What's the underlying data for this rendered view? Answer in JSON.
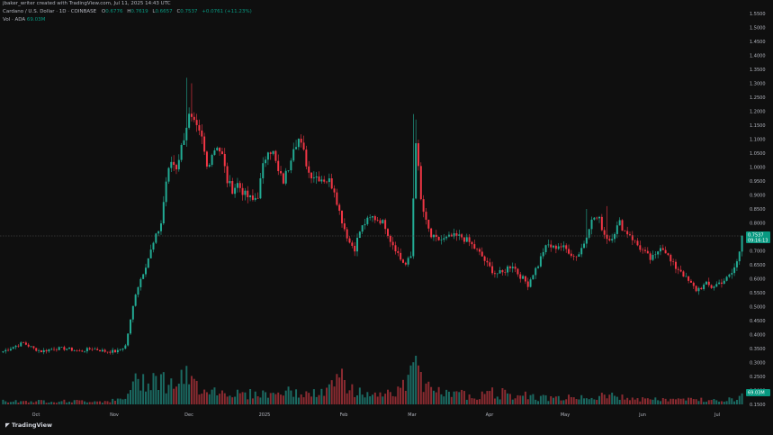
{
  "watermark": "jbaker_writer created with TradingView.com, Jul 11, 2025 14:43 UTC",
  "symbol_line": "Cardano / U.S. Dollar · 1D · COINBASE",
  "ohlc": {
    "o_label": "O",
    "o": "0.6776",
    "h_label": "H",
    "h": "0.7619",
    "l_label": "L",
    "l": "0.6657",
    "c_label": "C",
    "c": "0.7537",
    "change": "+0.0761 (+11.23%)"
  },
  "volume_line": {
    "label": "Vol · ADA",
    "value": "69.03M"
  },
  "price_tag": {
    "price": "0.7537",
    "countdown": "09:16:13"
  },
  "volume_tag": "69.03M",
  "logo_text": "TradingView",
  "colors": {
    "up": "#22ab94",
    "down": "#f23645",
    "up_vol": "#1b6a62",
    "down_vol": "#8b2b31",
    "background": "#0f0f0f"
  },
  "chart_data": {
    "type": "candlestick",
    "title": "Cardano / U.S. Dollar · 1D · COINBASE",
    "y_ticks": [
      "1.5500",
      "1.5000",
      "1.4500",
      "1.4000",
      "1.3500",
      "1.3000",
      "1.2500",
      "1.2000",
      "1.1500",
      "1.1000",
      "1.0500",
      "1.0000",
      "0.9500",
      "0.9000",
      "0.8500",
      "0.8000",
      "0.7500",
      "0.7000",
      "0.6500",
      "0.6000",
      "0.5500",
      "0.5000",
      "0.4500",
      "0.4000",
      "0.3500",
      "0.3000",
      "0.2500",
      "0.2000",
      "0.1500"
    ],
    "x_ticks": [
      "Oct",
      "Nov",
      "Dec",
      "2025",
      "Feb",
      "Mar",
      "Apr",
      "May",
      "Jun",
      "Jul"
    ],
    "close_path": [
      [
        0,
        0.34
      ],
      [
        5,
        0.36
      ],
      [
        8,
        0.37
      ],
      [
        12,
        0.35
      ],
      [
        15,
        0.34
      ],
      [
        20,
        0.35
      ],
      [
        25,
        0.35
      ],
      [
        30,
        0.34
      ],
      [
        35,
        0.35
      ],
      [
        40,
        0.34
      ],
      [
        45,
        0.34
      ],
      [
        48,
        0.36
      ],
      [
        50,
        0.45
      ],
      [
        52,
        0.55
      ],
      [
        54,
        0.6
      ],
      [
        56,
        0.65
      ],
      [
        58,
        0.7
      ],
      [
        60,
        0.75
      ],
      [
        62,
        0.8
      ],
      [
        64,
        0.95
      ],
      [
        66,
        1.02
      ],
      [
        68,
        1.0
      ],
      [
        70,
        1.07
      ],
      [
        72,
        1.15
      ],
      [
        73,
        1.18
      ],
      [
        75,
        1.15
      ],
      [
        78,
        1.1
      ],
      [
        80,
        1.0
      ],
      [
        82,
        1.05
      ],
      [
        84,
        1.08
      ],
      [
        86,
        1.04
      ],
      [
        88,
        0.95
      ],
      [
        90,
        0.92
      ],
      [
        92,
        0.94
      ],
      [
        95,
        0.9
      ],
      [
        98,
        0.88
      ],
      [
        100,
        0.9
      ],
      [
        102,
        1.0
      ],
      [
        104,
        1.07
      ],
      [
        106,
        1.05
      ],
      [
        108,
        0.98
      ],
      [
        110,
        0.95
      ],
      [
        112,
        1.0
      ],
      [
        114,
        1.08
      ],
      [
        116,
        1.1
      ],
      [
        118,
        1.05
      ],
      [
        120,
        0.98
      ],
      [
        122,
        0.97
      ],
      [
        125,
        0.96
      ],
      [
        128,
        0.95
      ],
      [
        130,
        0.92
      ],
      [
        132,
        0.84
      ],
      [
        134,
        0.78
      ],
      [
        136,
        0.73
      ],
      [
        138,
        0.71
      ],
      [
        140,
        0.77
      ],
      [
        142,
        0.8
      ],
      [
        145,
        0.82
      ],
      [
        148,
        0.81
      ],
      [
        150,
        0.79
      ],
      [
        152,
        0.74
      ],
      [
        154,
        0.71
      ],
      [
        156,
        0.67
      ],
      [
        158,
        0.65
      ],
      [
        160,
        0.68
      ],
      [
        162,
        1.1
      ],
      [
        164,
        0.88
      ],
      [
        166,
        0.8
      ],
      [
        168,
        0.75
      ],
      [
        170,
        0.74
      ],
      [
        173,
        0.74
      ],
      [
        176,
        0.75
      ],
      [
        180,
        0.75
      ],
      [
        183,
        0.73
      ],
      [
        186,
        0.7
      ],
      [
        188,
        0.68
      ],
      [
        190,
        0.65
      ],
      [
        193,
        0.62
      ],
      [
        196,
        0.62
      ],
      [
        198,
        0.64
      ],
      [
        200,
        0.65
      ],
      [
        202,
        0.62
      ],
      [
        204,
        0.6
      ],
      [
        206,
        0.58
      ],
      [
        208,
        0.62
      ],
      [
        210,
        0.65
      ],
      [
        212,
        0.7
      ],
      [
        214,
        0.72
      ],
      [
        216,
        0.71
      ],
      [
        218,
        0.72
      ],
      [
        220,
        0.71
      ],
      [
        222,
        0.7
      ],
      [
        224,
        0.68
      ],
      [
        226,
        0.69
      ],
      [
        228,
        0.73
      ],
      [
        230,
        0.79
      ],
      [
        232,
        0.82
      ],
      [
        234,
        0.81
      ],
      [
        236,
        0.76
      ],
      [
        238,
        0.74
      ],
      [
        240,
        0.77
      ],
      [
        242,
        0.8
      ],
      [
        244,
        0.77
      ],
      [
        246,
        0.76
      ],
      [
        248,
        0.73
      ],
      [
        250,
        0.71
      ],
      [
        252,
        0.69
      ],
      [
        254,
        0.67
      ],
      [
        256,
        0.68
      ],
      [
        258,
        0.72
      ],
      [
        260,
        0.7
      ],
      [
        262,
        0.66
      ],
      [
        264,
        0.64
      ],
      [
        266,
        0.63
      ],
      [
        268,
        0.6
      ],
      [
        270,
        0.58
      ],
      [
        272,
        0.56
      ],
      [
        274,
        0.57
      ],
      [
        276,
        0.58
      ],
      [
        278,
        0.57
      ],
      [
        280,
        0.58
      ],
      [
        282,
        0.59
      ],
      [
        284,
        0.6
      ],
      [
        286,
        0.62
      ],
      [
        288,
        0.66
      ],
      [
        289,
        0.7
      ],
      [
        290,
        0.7537
      ]
    ],
    "volume_path": [
      [
        0,
        0.02
      ],
      [
        20,
        0.02
      ],
      [
        40,
        0.02
      ],
      [
        48,
        0.03
      ],
      [
        50,
        0.12
      ],
      [
        55,
        0.15
      ],
      [
        60,
        0.18
      ],
      [
        65,
        0.12
      ],
      [
        70,
        0.15
      ],
      [
        72,
        0.16
      ],
      [
        75,
        0.12
      ],
      [
        80,
        0.1
      ],
      [
        85,
        0.08
      ],
      [
        90,
        0.07
      ],
      [
        95,
        0.06
      ],
      [
        100,
        0.07
      ],
      [
        105,
        0.06
      ],
      [
        110,
        0.08
      ],
      [
        115,
        0.07
      ],
      [
        120,
        0.06
      ],
      [
        125,
        0.07
      ],
      [
        130,
        0.12
      ],
      [
        132,
        0.16
      ],
      [
        135,
        0.09
      ],
      [
        140,
        0.08
      ],
      [
        145,
        0.06
      ],
      [
        150,
        0.07
      ],
      [
        155,
        0.09
      ],
      [
        160,
        0.14
      ],
      [
        162,
        0.18
      ],
      [
        165,
        0.13
      ],
      [
        168,
        0.09
      ],
      [
        172,
        0.07
      ],
      [
        176,
        0.06
      ],
      [
        180,
        0.06
      ],
      [
        185,
        0.05
      ],
      [
        190,
        0.08
      ],
      [
        195,
        0.06
      ],
      [
        200,
        0.05
      ],
      [
        205,
        0.06
      ],
      [
        210,
        0.04
      ],
      [
        220,
        0.04
      ],
      [
        230,
        0.05
      ],
      [
        240,
        0.05
      ],
      [
        250,
        0.03
      ],
      [
        260,
        0.03
      ],
      [
        270,
        0.03
      ],
      [
        280,
        0.03
      ],
      [
        286,
        0.03
      ],
      [
        290,
        0.05
      ]
    ],
    "volume_spikes": [
      [
        133,
        0.22
      ],
      [
        160,
        0.24
      ],
      [
        161,
        0.26
      ],
      [
        162,
        0.3
      ],
      [
        163,
        0.24
      ],
      [
        164,
        0.2
      ],
      [
        167,
        0.14
      ],
      [
        196,
        0.1
      ],
      [
        197,
        0.09
      ],
      [
        238,
        0.06
      ]
    ],
    "notable_highs": [
      [
        72,
        1.32
      ],
      [
        74,
        1.3
      ],
      [
        161,
        1.19
      ],
      [
        162,
        1.17
      ],
      [
        229,
        0.85
      ],
      [
        237,
        0.86
      ]
    ],
    "y_range": [
      0.13,
      1.57
    ],
    "bars": 291,
    "grid": false,
    "legend": "top-left"
  }
}
